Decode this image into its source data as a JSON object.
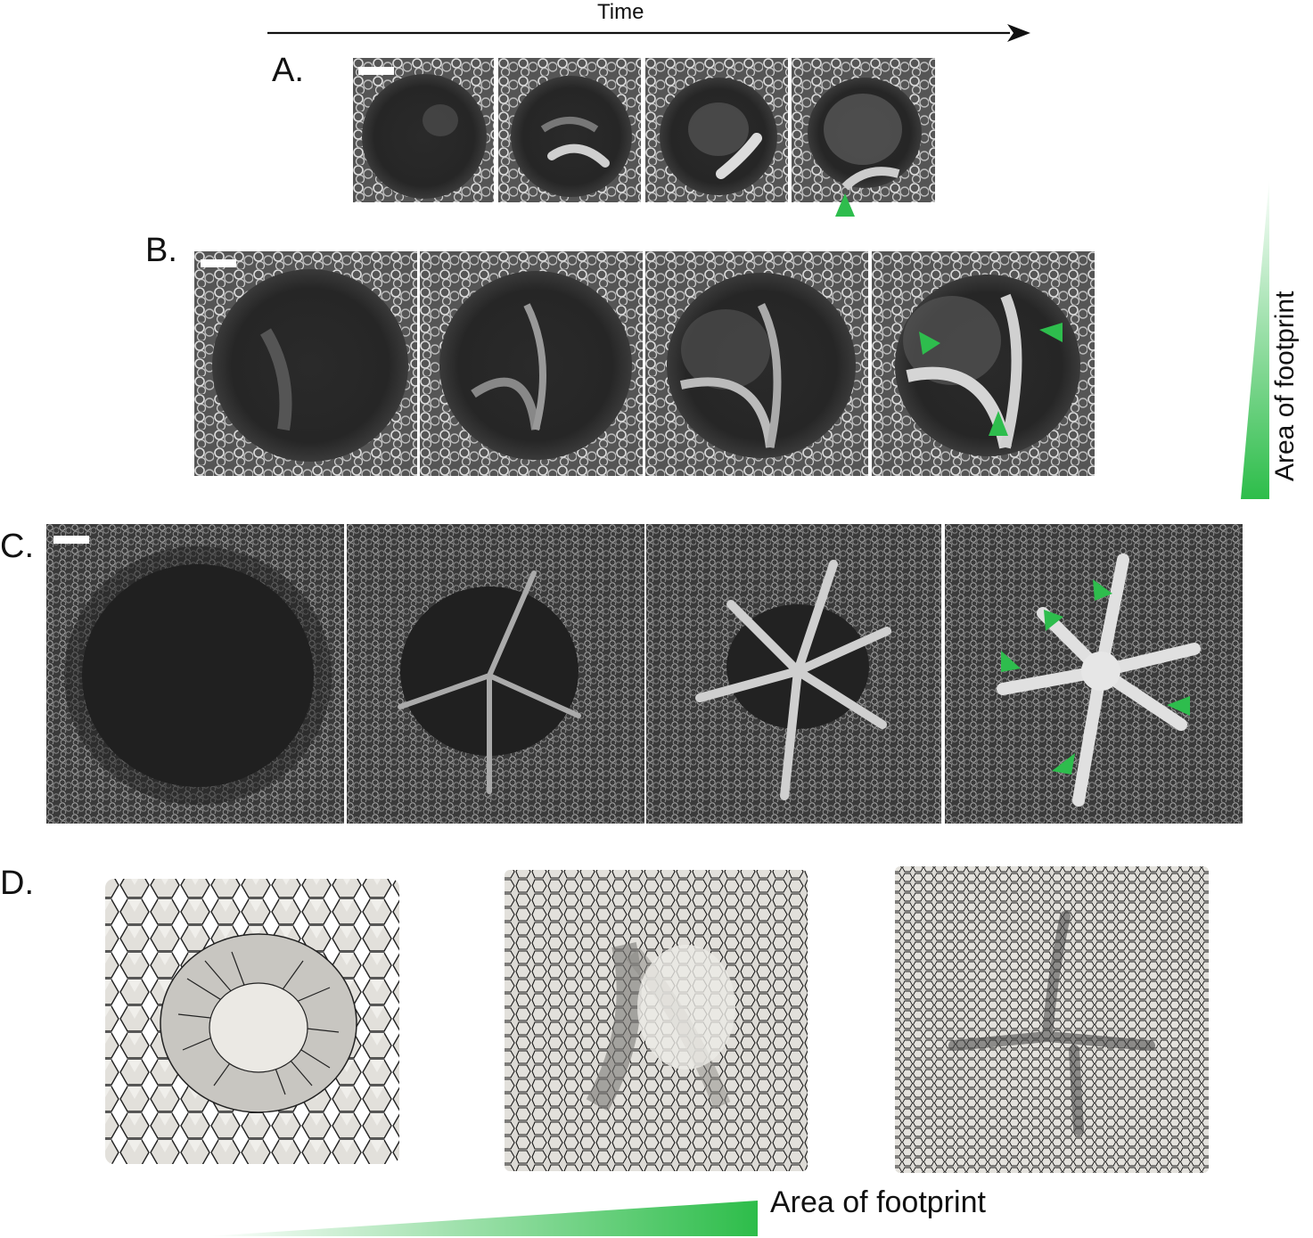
{
  "figure": {
    "time_label": "Time",
    "panel_labels": {
      "a": "A.",
      "b": "B.",
      "c": "C.",
      "d": "D."
    },
    "gradient_label_vertical": "Area of footprint",
    "gradient_label_horizontal": "Area of footprint",
    "colors": {
      "arrowhead": "#2ebd4d",
      "gradient_end": "#2dbd4a",
      "micrograph_dark": "#1e1e1e",
      "micrograph_bright": "#d9d9d9",
      "mesh_fill": "#e3e1dc",
      "mesh_stroke": "#1a1a1a"
    },
    "icons": {
      "time_arrow": "right-arrow-icon",
      "marker": "green-arrowhead-icon"
    }
  }
}
